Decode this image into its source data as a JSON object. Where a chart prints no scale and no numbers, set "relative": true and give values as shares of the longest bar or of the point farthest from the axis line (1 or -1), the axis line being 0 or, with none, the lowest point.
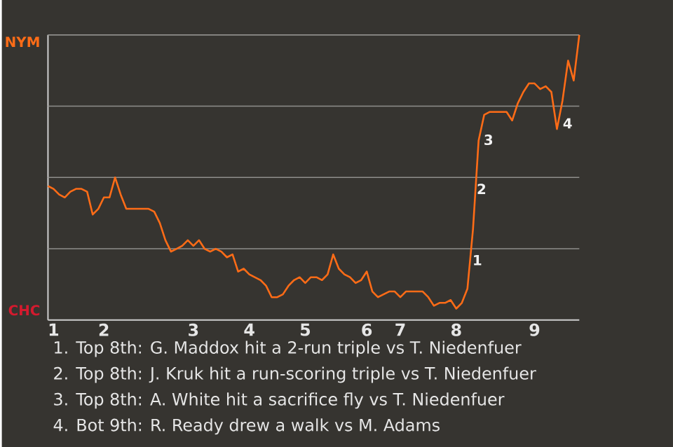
{
  "chart_data": {
    "type": "line",
    "relative": true,
    "categories": [
      null,
      "1",
      null,
      null,
      null,
      null,
      null,
      null,
      null,
      null,
      "2",
      null,
      null,
      null,
      null,
      null,
      null,
      null,
      null,
      null,
      null,
      null,
      null,
      null,
      null,
      null,
      "3",
      null,
      null,
      null,
      null,
      null,
      null,
      null,
      null,
      null,
      "4",
      null,
      null,
      null,
      null,
      null,
      null,
      null,
      null,
      null,
      "5",
      null,
      null,
      null,
      null,
      null,
      null,
      null,
      null,
      null,
      null,
      "6",
      null,
      null,
      null,
      null,
      null,
      "7",
      null,
      null,
      null,
      null,
      null,
      null,
      null,
      null,
      null,
      "8",
      null,
      null,
      null,
      null,
      null,
      null,
      null,
      null,
      null,
      null,
      null,
      null,
      null,
      "9",
      null,
      null,
      null,
      null,
      null,
      null,
      null,
      null
    ],
    "grid": "y",
    "marker": "none",
    "line_style": "solid",
    "series": [
      {
        "color": "#ff6c17",
        "values": [
          0.47,
          0.46,
          0.44,
          0.43,
          0.45,
          0.46,
          0.46,
          0.45,
          0.37,
          0.39,
          0.43,
          0.43,
          0.5,
          0.44,
          0.39,
          0.39,
          0.39,
          0.39,
          0.39,
          0.38,
          0.34,
          0.28,
          0.24,
          0.25,
          0.26,
          0.28,
          0.26,
          0.28,
          0.25,
          0.24,
          0.25,
          0.24,
          0.22,
          0.23,
          0.17,
          0.18,
          0.16,
          0.15,
          0.14,
          0.12,
          0.08,
          0.08,
          0.09,
          0.12,
          0.14,
          0.15,
          0.13,
          0.15,
          0.15,
          0.14,
          0.16,
          0.23,
          0.18,
          0.16,
          0.15,
          0.13,
          0.14,
          0.17,
          0.1,
          0.08,
          0.09,
          0.1,
          0.1,
          0.08,
          0.1,
          0.1,
          0.1,
          0.1,
          0.08,
          0.05,
          0.06,
          0.06,
          0.07,
          0.04,
          0.06,
          0.11,
          0.32,
          0.63,
          0.72,
          0.73,
          0.73,
          0.73,
          0.73,
          0.7,
          0.76,
          0.8,
          0.83,
          0.83,
          0.81,
          0.82,
          0.8,
          0.67,
          0.77,
          0.91,
          0.84,
          1.0
        ]
      }
    ],
    "annotations": [
      "NYM",
      "CHC",
      "1",
      "2",
      "3",
      "4",
      "1. Top 8th: G. Maddox hit a 2-run triple vs T. Niedenfuer",
      "2. Top 8th: J. Kruk hit a run-scoring triple vs T. Niedenfuer",
      "3. Top 8th: A. White hit a sacrifice fly vs T. Niedenfuer",
      "4. Bot 9th: R. Ready drew a walk vs M. Adams"
    ]
  }
}
